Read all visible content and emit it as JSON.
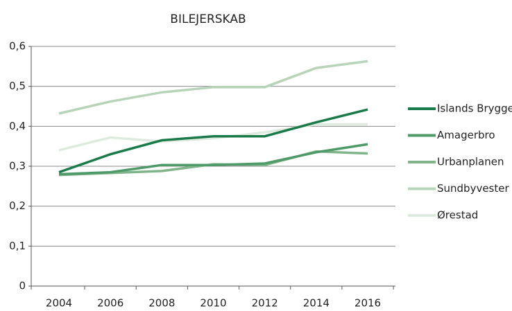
{
  "chart_data": {
    "type": "line",
    "title": "BILEJERSKAB",
    "categories": [
      "2004",
      "2006",
      "2008",
      "2010",
      "2012",
      "2014",
      "2016"
    ],
    "ylim": [
      0,
      0.6
    ],
    "yticks": [
      0,
      {
        "value": 0.1,
        "label": "0,1"
      },
      {
        "value": 0.2,
        "label": "0,2"
      },
      {
        "value": 0.3,
        "label": "0,3"
      },
      {
        "value": 0.4,
        "label": "0,4"
      },
      {
        "value": 0.5,
        "label": "0,5"
      },
      {
        "value": 0.6,
        "label": "0,6"
      }
    ],
    "grid": true,
    "legend": "right",
    "series": [
      {
        "name": "Islands Brygge",
        "color": "#1a7a4a",
        "values": [
          0.285,
          0.33,
          0.365,
          0.375,
          0.375,
          0.41,
          0.442
        ]
      },
      {
        "name": "Amagerbro",
        "color": "#4e9a68",
        "values": [
          0.28,
          0.285,
          0.303,
          0.303,
          0.307,
          0.335,
          0.355
        ]
      },
      {
        "name": "Urbanplanen",
        "color": "#80b48b",
        "values": [
          0.278,
          0.283,
          0.288,
          0.305,
          0.303,
          0.337,
          0.332
        ]
      },
      {
        "name": "Sundbyvester",
        "color": "#b7d4b9",
        "values": [
          0.432,
          0.462,
          0.485,
          0.498,
          0.498,
          0.546,
          0.563
        ]
      },
      {
        "name": "Ørestad",
        "color": "#dfeadf",
        "values": [
          0.34,
          0.372,
          0.362,
          0.37,
          0.385,
          0.405,
          0.405
        ]
      }
    ]
  }
}
